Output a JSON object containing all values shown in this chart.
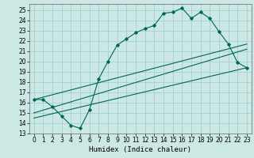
{
  "xlabel": "Humidex (Indice chaleur)",
  "bg_color": "#cce8e4",
  "grid_color": "#99cccc",
  "line_color": "#006655",
  "xlim": [
    -0.5,
    23.5
  ],
  "ylim": [
    13,
    25.6
  ],
  "yticks": [
    13,
    14,
    15,
    16,
    17,
    18,
    19,
    20,
    21,
    22,
    23,
    24,
    25
  ],
  "xticks": [
    0,
    1,
    2,
    3,
    4,
    5,
    6,
    7,
    8,
    9,
    10,
    11,
    12,
    13,
    14,
    15,
    16,
    17,
    18,
    19,
    20,
    21,
    22,
    23
  ],
  "series1_x": [
    0,
    1,
    2,
    3,
    4,
    5,
    6,
    7,
    8,
    9,
    10,
    11,
    12,
    13,
    14,
    15,
    16,
    17,
    18,
    19,
    20,
    21,
    22,
    23
  ],
  "series1_y": [
    16.3,
    16.3,
    15.6,
    14.7,
    13.8,
    13.5,
    15.3,
    18.3,
    20.0,
    21.6,
    22.2,
    22.8,
    23.2,
    23.5,
    24.7,
    24.8,
    25.2,
    24.2,
    24.8,
    24.2,
    22.9,
    21.7,
    19.9,
    19.4
  ],
  "series2_x": [
    0,
    23
  ],
  "series2_y": [
    14.5,
    19.4
  ],
  "series3_x": [
    0,
    23
  ],
  "series3_y": [
    15.0,
    21.2
  ],
  "series4_x": [
    0,
    23
  ],
  "series4_y": [
    16.3,
    21.7
  ],
  "tick_fontsize": 5.5,
  "xlabel_fontsize": 6.5
}
